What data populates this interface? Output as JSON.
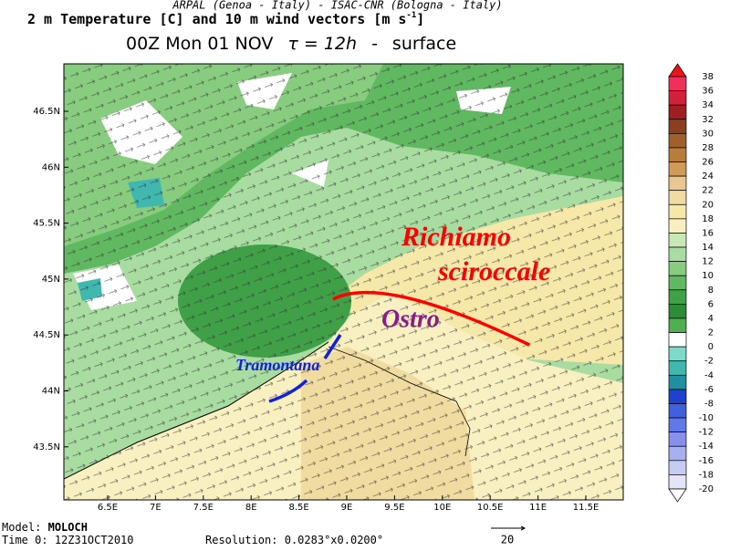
{
  "header": {
    "line1": "ARPAL (Genoa - Italy)  -  ISAC-CNR (Bologna - Italy)",
    "line2": "2 m Temperature [C] and 10 m wind vectors [m s",
    "line2_sup": "-1",
    "line2_end": "]",
    "line3_time": "00Z Mon 01 NOV",
    "line3_tau": "τ = 12h",
    "line3_sep": "-",
    "line3_level": "surface"
  },
  "map": {
    "x_ticks": [
      "6.5E",
      "7E",
      "7.5E",
      "8E",
      "8.5E",
      "9E",
      "9.5E",
      "10E",
      "10.5E",
      "11E",
      "11.5E"
    ],
    "y_ticks": [
      "46.5N",
      "46N",
      "45.5N",
      "45N",
      "44.5N",
      "44N",
      "43.5N"
    ],
    "annotations": {
      "richiamo": "Richiamo",
      "scirocco": "sciroccale",
      "ostro": "Ostro",
      "tramontana": "Tramontana"
    }
  },
  "colorbar": {
    "labels": [
      38,
      36,
      34,
      32,
      30,
      28,
      26,
      24,
      22,
      20,
      18,
      16,
      14,
      12,
      10,
      8,
      6,
      4,
      2,
      0,
      -2,
      -4,
      -6,
      -8,
      -10,
      -12,
      -14,
      -16,
      -18,
      -20
    ],
    "top_color": "#e8161b",
    "bottom_color": "#ffffff",
    "colors": [
      "#f0305a",
      "#d0203c",
      "#a01e20",
      "#8c3f1e",
      "#a0602c",
      "#b87c3c",
      "#d09a58",
      "#e8c890",
      "#f0dca0",
      "#f5e8a8",
      "#f8f0c0",
      "#c8e8b8",
      "#a8dca0",
      "#88cc80",
      "#60b860",
      "#40a048",
      "#2c8c38",
      "#50b050",
      "#ffffff",
      "#80d8c8",
      "#40b8b0",
      "#2090a0",
      "#2040d0",
      "#4060e0",
      "#6078e8",
      "#8890ec",
      "#a8b0f0",
      "#c8ccf4",
      "#e4e4f8"
    ]
  },
  "footer": {
    "model_label": "Model:",
    "model": "MOLOCH",
    "time_label": "Time 0:",
    "time": "12Z31OCT2010",
    "res_label": "Resolution:",
    "res": "0.0283°x0.0200°",
    "vector_ref": "20"
  }
}
